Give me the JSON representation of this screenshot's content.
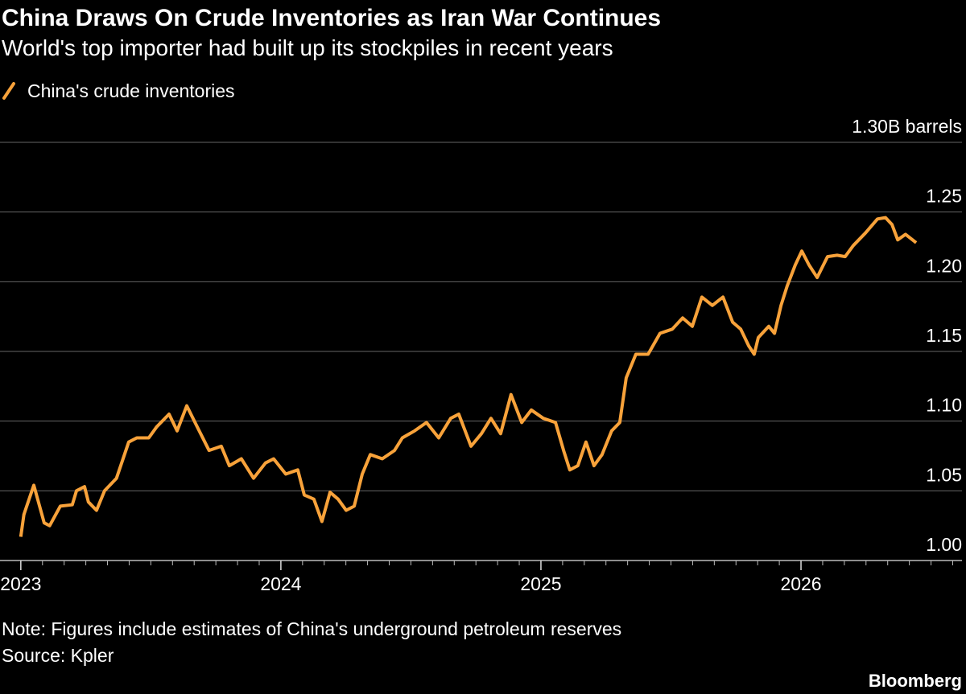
{
  "chart_data": {
    "type": "line",
    "title": "China Draws On Crude Inventories as Iran War Continues",
    "subtitle": "World's top importer had built up its stockpiles in recent years",
    "note": "Note: Figures include estimates of China's underground petroleum reserves",
    "source": "Source: Kpler",
    "brand": "Bloomberg",
    "x": [
      2023.0,
      2023.012,
      2023.05,
      2023.09,
      2023.111,
      2023.152,
      2023.198,
      2023.214,
      2023.245,
      2023.26,
      2023.291,
      2023.322,
      2023.368,
      2023.415,
      2023.446,
      2023.492,
      2023.523,
      2023.57,
      2023.601,
      2023.638,
      2023.678,
      2023.724,
      2023.771,
      2023.802,
      2023.848,
      2023.895,
      2023.941,
      2023.972,
      2024.019,
      2024.065,
      2024.09,
      2024.127,
      2024.158,
      2024.189,
      2024.22,
      2024.251,
      2024.282,
      2024.313,
      2024.344,
      2024.39,
      2024.437,
      2024.467,
      2024.514,
      2024.56,
      2024.607,
      2024.653,
      2024.684,
      2024.731,
      2024.771,
      2024.808,
      2024.845,
      2024.885,
      2024.926,
      2024.963,
      2025.009,
      2025.056,
      2025.087,
      2025.111,
      2025.142,
      2025.173,
      2025.204,
      2025.235,
      2025.272,
      2025.303,
      2025.328,
      2025.365,
      2025.412,
      2025.458,
      2025.505,
      2025.545,
      2025.582,
      2025.619,
      2025.659,
      2025.7,
      2025.737,
      2025.768,
      2025.799,
      2025.82,
      2025.836,
      2025.876,
      2025.898,
      2025.923,
      2025.947,
      2025.978,
      2026.003,
      2026.031,
      2026.062,
      2026.102,
      2026.139,
      2026.17,
      2026.201,
      2026.248,
      2026.294,
      2026.325,
      2026.35,
      2026.372,
      2026.402,
      2026.443
    ],
    "series": [
      {
        "name": "China's crude inventories",
        "color": "#f8a23a",
        "values": [
          1.017,
          1.033,
          1.054,
          1.027,
          1.025,
          1.039,
          1.04,
          1.05,
          1.053,
          1.042,
          1.036,
          1.05,
          1.059,
          1.085,
          1.088,
          1.088,
          1.096,
          1.105,
          1.093,
          1.111,
          1.096,
          1.079,
          1.082,
          1.068,
          1.073,
          1.059,
          1.07,
          1.073,
          1.062,
          1.065,
          1.047,
          1.044,
          1.028,
          1.049,
          1.044,
          1.036,
          1.039,
          1.062,
          1.076,
          1.073,
          1.079,
          1.088,
          1.093,
          1.099,
          1.088,
          1.102,
          1.105,
          1.082,
          1.091,
          1.102,
          1.091,
          1.119,
          1.099,
          1.108,
          1.102,
          1.099,
          1.079,
          1.065,
          1.068,
          1.085,
          1.068,
          1.076,
          1.093,
          1.099,
          1.131,
          1.148,
          1.148,
          1.163,
          1.166,
          1.174,
          1.168,
          1.189,
          1.183,
          1.189,
          1.171,
          1.166,
          1.154,
          1.148,
          1.16,
          1.168,
          1.163,
          1.183,
          1.197,
          1.212,
          1.222,
          1.212,
          1.203,
          1.218,
          1.219,
          1.218,
          1.226,
          1.235,
          1.245,
          1.246,
          1.241,
          1.23,
          1.234,
          1.228
        ]
      }
    ],
    "xlim": [
      2022.92,
      2026.619
    ],
    "xticks": [
      2023,
      2024,
      2025,
      2026
    ],
    "ylim": [
      1.0,
      1.3
    ],
    "yticks": [
      {
        "value": 1.0,
        "label": "1.00"
      },
      1.05,
      {
        "value": 1.1,
        "label": "1.10"
      },
      1.15,
      {
        "value": 1.2,
        "label": "1.20"
      },
      1.25,
      {
        "value": 1.3,
        "label": "1.30B barrels"
      }
    ],
    "grid": true
  }
}
